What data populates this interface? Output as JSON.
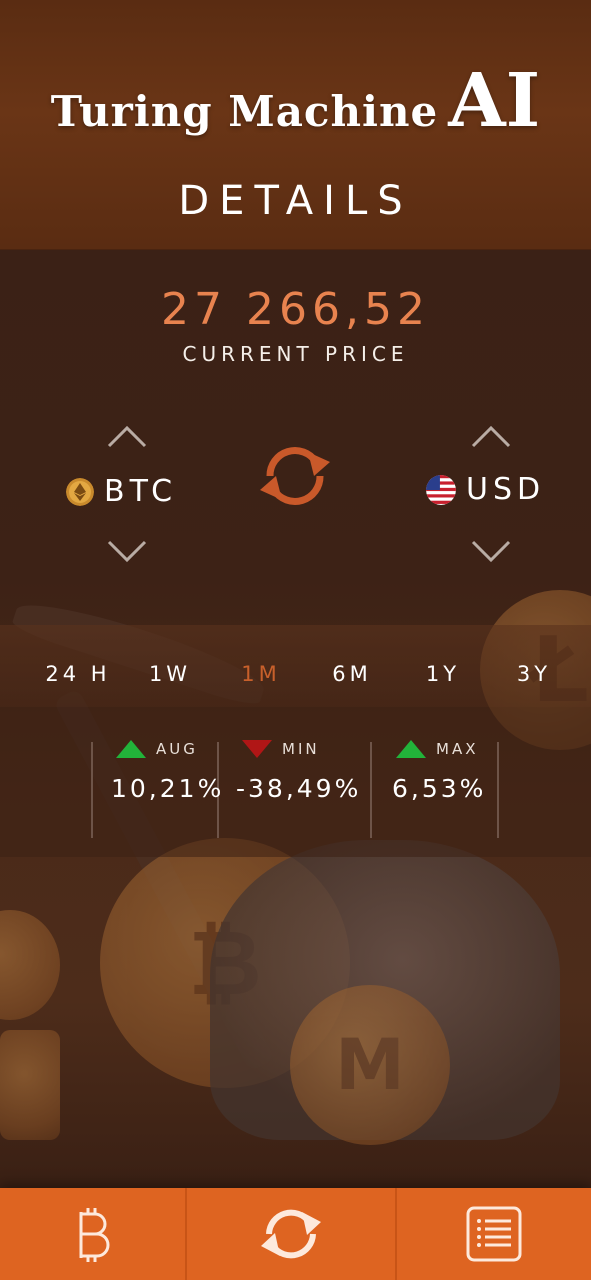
{
  "header": {
    "logo_text_small": "Turing Machine",
    "logo_text_big": "AI",
    "title": "DETAILS"
  },
  "price": {
    "value": "27 266,52",
    "label": "CURRENT PRICE"
  },
  "converter": {
    "from": {
      "symbol": "BTC",
      "icon": "coin-icon"
    },
    "to": {
      "symbol": "USD",
      "icon": "us-flag-icon"
    },
    "swap_icon": "swap-icon"
  },
  "periods": [
    {
      "label": "24 H",
      "active": false
    },
    {
      "label": "1W",
      "active": false
    },
    {
      "label": "1M",
      "active": true
    },
    {
      "label": "6M",
      "active": false
    },
    {
      "label": "1Y",
      "active": false
    },
    {
      "label": "3Y",
      "active": false
    }
  ],
  "stats": [
    {
      "label": "AUG",
      "value": "10,21%",
      "trend": "up"
    },
    {
      "label": "MIN",
      "value": "-38,49%",
      "trend": "down"
    },
    {
      "label": "MAX",
      "value": "6,53%",
      "trend": "up"
    }
  ],
  "bottom_nav": [
    {
      "icon": "bitcoin-icon"
    },
    {
      "icon": "refresh-icon"
    },
    {
      "icon": "list-icon"
    }
  ],
  "colors": {
    "accent": "#de6421",
    "price": "#e8834f",
    "active_tab": "#c8602b",
    "up": "#22b33a",
    "down": "#b01616"
  }
}
